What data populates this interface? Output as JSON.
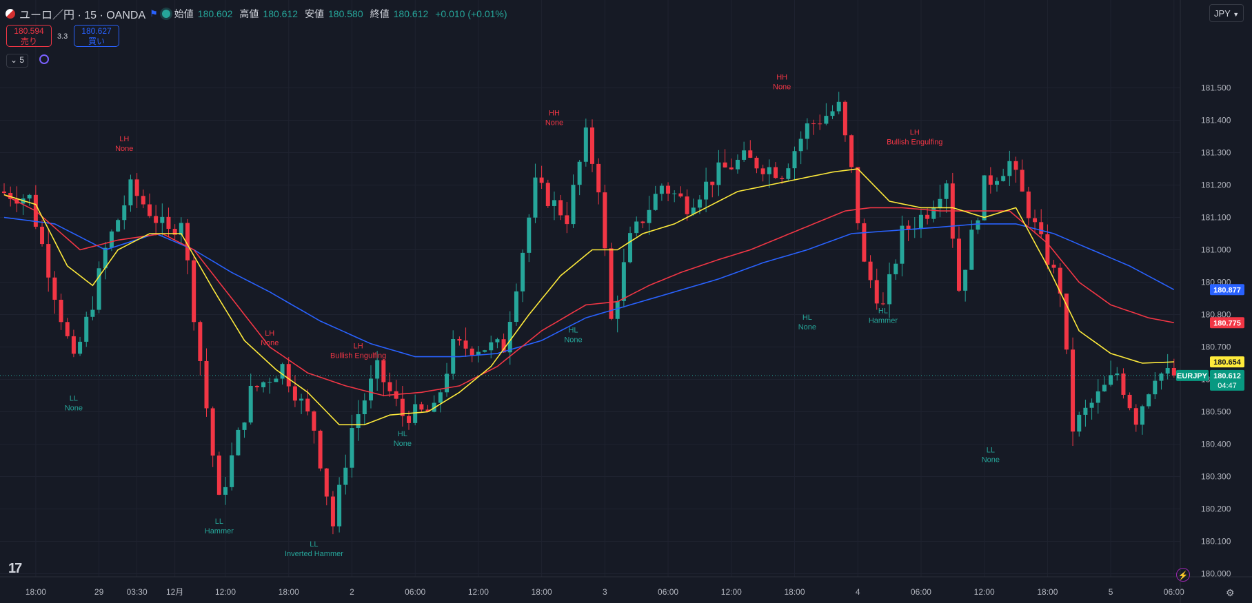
{
  "header": {
    "symbol": "ユーロ／円 · 15 · OANDA",
    "open_label": "始値",
    "open": "180.602",
    "high_label": "高値",
    "high": "180.612",
    "low_label": "安値",
    "low": "180.580",
    "close_label": "終値",
    "close": "180.612",
    "change": "+0.010 (+0.01%)"
  },
  "trade": {
    "sell_price": "180.594",
    "sell_label": "売り",
    "buy_price": "180.627",
    "buy_label": "買い",
    "spread": "3.3"
  },
  "indicators": {
    "collapsed_count": "5"
  },
  "currency": "JPY",
  "colors": {
    "up": "#26a69a",
    "down": "#f23645",
    "sma_fast": "#ffeb3b",
    "sma_mid": "#f23645",
    "sma_slow": "#2962ff",
    "bg": "#161a25"
  },
  "icons": [
    "chart-logo-icon",
    "flag-icon",
    "live-status-icon",
    "chevron-down-icon",
    "sync-icon",
    "tradingview-logo-icon",
    "lightning-icon",
    "gear-icon"
  ],
  "chart_data": {
    "type": "candlestick",
    "symbol": "EURJPY",
    "ylim": [
      180.0,
      181.6
    ],
    "y_ticks": [
      "181.500",
      "181.400",
      "181.300",
      "181.200",
      "181.100",
      "181.000",
      "180.900",
      "180.800",
      "180.700",
      "180.600",
      "180.500",
      "180.400",
      "180.300",
      "180.200",
      "180.100",
      "180.000"
    ],
    "x_ticks": [
      {
        "label": "18:00",
        "i": 5
      },
      {
        "label": "29",
        "i": 15
      },
      {
        "label": "03:30",
        "i": 21
      },
      {
        "label": "12月",
        "i": 27
      },
      {
        "label": "12:00",
        "i": 35
      },
      {
        "label": "18:00",
        "i": 45
      },
      {
        "label": "2",
        "i": 55
      },
      {
        "label": "06:00",
        "i": 65
      },
      {
        "label": "12:00",
        "i": 75
      },
      {
        "label": "18:00",
        "i": 85
      },
      {
        "label": "3",
        "i": 95
      },
      {
        "label": "06:00",
        "i": 105
      },
      {
        "label": "12:00",
        "i": 115
      },
      {
        "label": "18:00",
        "i": 125
      },
      {
        "label": "4",
        "i": 135
      },
      {
        "label": "06:00",
        "i": 145
      },
      {
        "label": "12:00",
        "i": 155
      },
      {
        "label": "18:00",
        "i": 165
      },
      {
        "label": "5",
        "i": 175
      },
      {
        "label": "06:00",
        "i": 185
      }
    ],
    "n_bars": 186,
    "path": [
      [
        0,
        181.18
      ],
      [
        5,
        181.16
      ],
      [
        12,
        180.65
      ],
      [
        15,
        180.84
      ],
      [
        17,
        181.0
      ],
      [
        21,
        181.19
      ],
      [
        27,
        181.05
      ],
      [
        29,
        181.1
      ],
      [
        35,
        180.22
      ],
      [
        40,
        180.56
      ],
      [
        45,
        180.64
      ],
      [
        50,
        180.45
      ],
      [
        53,
        180.15
      ],
      [
        56,
        180.45
      ],
      [
        60,
        180.63
      ],
      [
        64,
        180.49
      ],
      [
        69,
        180.5
      ],
      [
        72,
        180.7
      ],
      [
        76,
        180.7
      ],
      [
        80,
        180.7
      ],
      [
        85,
        181.2
      ],
      [
        90,
        181.1
      ],
      [
        93,
        181.35
      ],
      [
        95,
        181.2
      ],
      [
        97,
        180.78
      ],
      [
        100,
        181.03
      ],
      [
        105,
        181.2
      ],
      [
        109,
        181.14
      ],
      [
        114,
        181.24
      ],
      [
        118,
        181.28
      ],
      [
        124,
        181.24
      ],
      [
        128,
        181.38
      ],
      [
        133,
        181.44
      ],
      [
        135,
        181.24
      ],
      [
        137,
        180.95
      ],
      [
        140,
        180.82
      ],
      [
        143,
        181.05
      ],
      [
        147,
        181.12
      ],
      [
        150,
        181.22
      ],
      [
        152,
        180.88
      ],
      [
        156,
        181.2
      ],
      [
        160,
        181.27
      ],
      [
        165,
        181.02
      ],
      [
        168,
        180.88
      ],
      [
        170,
        180.45
      ],
      [
        172,
        180.5
      ],
      [
        177,
        180.62
      ],
      [
        180,
        180.48
      ],
      [
        183,
        180.62
      ],
      [
        186,
        180.612
      ]
    ],
    "sma_fast": [
      [
        0,
        181.17
      ],
      [
        5,
        181.14
      ],
      [
        10,
        180.95
      ],
      [
        14,
        180.89
      ],
      [
        18,
        181.0
      ],
      [
        23,
        181.05
      ],
      [
        28,
        181.05
      ],
      [
        33,
        180.88
      ],
      [
        38,
        180.72
      ],
      [
        43,
        180.63
      ],
      [
        48,
        180.56
      ],
      [
        53,
        180.46
      ],
      [
        57,
        180.46
      ],
      [
        61,
        180.49
      ],
      [
        67,
        180.5
      ],
      [
        72,
        180.56
      ],
      [
        77,
        180.64
      ],
      [
        83,
        180.8
      ],
      [
        88,
        180.92
      ],
      [
        93,
        181.0
      ],
      [
        97,
        181.0
      ],
      [
        101,
        181.05
      ],
      [
        106,
        181.08
      ],
      [
        111,
        181.13
      ],
      [
        116,
        181.18
      ],
      [
        121,
        181.2
      ],
      [
        126,
        181.22
      ],
      [
        131,
        181.24
      ],
      [
        135,
        181.25
      ],
      [
        140,
        181.15
      ],
      [
        145,
        181.13
      ],
      [
        150,
        181.13
      ],
      [
        155,
        181.1
      ],
      [
        160,
        181.13
      ],
      [
        165,
        180.95
      ],
      [
        170,
        180.75
      ],
      [
        175,
        180.68
      ],
      [
        180,
        180.65
      ],
      [
        185,
        180.654
      ]
    ],
    "sma_mid": [
      [
        0,
        181.17
      ],
      [
        5,
        181.12
      ],
      [
        12,
        181.0
      ],
      [
        18,
        181.03
      ],
      [
        25,
        181.05
      ],
      [
        30,
        181.0
      ],
      [
        36,
        180.85
      ],
      [
        42,
        180.7
      ],
      [
        48,
        180.62
      ],
      [
        54,
        180.58
      ],
      [
        60,
        180.55
      ],
      [
        66,
        180.56
      ],
      [
        72,
        180.58
      ],
      [
        78,
        180.64
      ],
      [
        85,
        180.75
      ],
      [
        92,
        180.83
      ],
      [
        97,
        180.84
      ],
      [
        102,
        180.89
      ],
      [
        107,
        180.93
      ],
      [
        113,
        180.97
      ],
      [
        118,
        181.0
      ],
      [
        123,
        181.04
      ],
      [
        128,
        181.08
      ],
      [
        133,
        181.12
      ],
      [
        137,
        181.13
      ],
      [
        142,
        181.13
      ],
      [
        148,
        181.12
      ],
      [
        154,
        181.12
      ],
      [
        159,
        181.12
      ],
      [
        165,
        181.02
      ],
      [
        170,
        180.9
      ],
      [
        175,
        180.83
      ],
      [
        181,
        180.79
      ],
      [
        185,
        180.775
      ]
    ],
    "sma_slow": [
      [
        0,
        181.1
      ],
      [
        8,
        181.08
      ],
      [
        16,
        181.0
      ],
      [
        24,
        181.05
      ],
      [
        30,
        181.0
      ],
      [
        36,
        180.93
      ],
      [
        42,
        180.87
      ],
      [
        50,
        180.78
      ],
      [
        58,
        180.71
      ],
      [
        65,
        180.67
      ],
      [
        72,
        180.67
      ],
      [
        78,
        180.68
      ],
      [
        85,
        180.72
      ],
      [
        92,
        180.79
      ],
      [
        99,
        180.83
      ],
      [
        106,
        180.87
      ],
      [
        113,
        180.91
      ],
      [
        120,
        180.96
      ],
      [
        127,
        181.0
      ],
      [
        134,
        181.05
      ],
      [
        141,
        181.06
      ],
      [
        148,
        181.07
      ],
      [
        154,
        181.08
      ],
      [
        160,
        181.08
      ],
      [
        166,
        181.05
      ],
      [
        172,
        181.0
      ],
      [
        178,
        180.95
      ],
      [
        185,
        180.877
      ]
    ],
    "annotations": [
      {
        "i": 19,
        "price": 181.28,
        "pos": "above",
        "type": "LH",
        "label": "None",
        "color": "#f23645"
      },
      {
        "i": 11,
        "price": 180.56,
        "pos": "below",
        "type": "LL",
        "label": "None",
        "color": "#26a69a"
      },
      {
        "i": 34,
        "price": 180.18,
        "pos": "below",
        "type": "LL",
        "label": "Hammer",
        "color": "#26a69a"
      },
      {
        "i": 42,
        "price": 180.68,
        "pos": "above",
        "type": "LH",
        "label": "None",
        "color": "#f23645"
      },
      {
        "i": 49,
        "price": 180.11,
        "pos": "below",
        "type": "LL",
        "label": "Inverted Hammer",
        "color": "#26a69a"
      },
      {
        "i": 56,
        "price": 180.64,
        "pos": "above",
        "type": "LH",
        "label": "Bullish Engulfing",
        "color": "#f23645"
      },
      {
        "i": 63,
        "price": 180.45,
        "pos": "below",
        "type": "HL",
        "label": "None",
        "color": "#26a69a"
      },
      {
        "i": 87,
        "price": 181.36,
        "pos": "above",
        "type": "HH",
        "label": "None",
        "color": "#f23645"
      },
      {
        "i": 90,
        "price": 180.77,
        "pos": "below",
        "type": "HL",
        "label": "None",
        "color": "#26a69a"
      },
      {
        "i": 123,
        "price": 181.47,
        "pos": "above",
        "type": "HH",
        "label": "None",
        "color": "#f23645"
      },
      {
        "i": 127,
        "price": 180.81,
        "pos": "below",
        "type": "HL",
        "label": "None",
        "color": "#26a69a"
      },
      {
        "i": 139,
        "price": 180.83,
        "pos": "below",
        "type": "HL",
        "label": "Hammer",
        "color": "#26a69a"
      },
      {
        "i": 144,
        "price": 181.3,
        "pos": "above",
        "type": "LH",
        "label": "Bullish Engulfing",
        "color": "#f23645"
      },
      {
        "i": 156,
        "price": 180.4,
        "pos": "below",
        "type": "LL",
        "label": "None",
        "color": "#26a69a"
      }
    ],
    "price_labels": [
      {
        "price": 180.877,
        "text": "180.877",
        "color": "#2962ff"
      },
      {
        "price": 180.775,
        "text": "180.775",
        "color": "#f23645"
      },
      {
        "price": 180.654,
        "text": "180.654",
        "color": "#ffeb3b"
      },
      {
        "price": 180.612,
        "text": "180.612",
        "sub": "04:47",
        "tag": "EURJPY",
        "color": "#089981"
      }
    ]
  }
}
